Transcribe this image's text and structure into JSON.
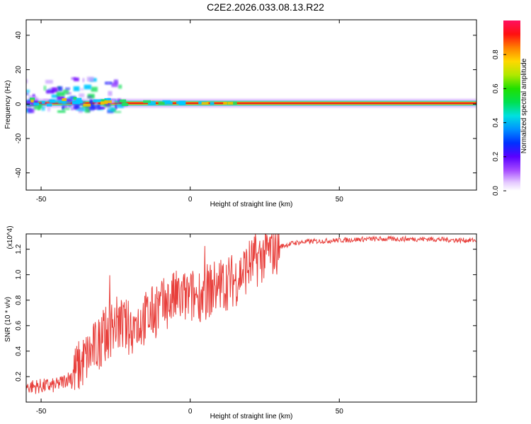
{
  "title": "C2E2.2026.033.08.13.R22",
  "chart_data": [
    {
      "type": "heatmap",
      "name": "spectrogram",
      "xlabel": "Height of straight line (km)",
      "ylabel": "Frequency (Hz)",
      "xlim": [
        -55,
        96
      ],
      "ylim": [
        -50,
        49
      ],
      "xticks": [
        -50,
        0,
        50
      ],
      "yticks": [
        -40,
        -20,
        0,
        20,
        40
      ],
      "features": [
        {
          "desc": "dominant ridge",
          "x_range": [
            -55,
            96
          ],
          "freq": 0.5,
          "amplitude": 1.0
        },
        {
          "desc": "noisy band",
          "x_range": [
            -55,
            -22
          ],
          "freq_range": [
            -5,
            15
          ],
          "amplitude": 0.3
        }
      ],
      "colorbar": {
        "label": "Normalized spectral amplitude",
        "range": [
          0.0,
          1.0
        ],
        "ticks": [
          0.0,
          0.2,
          0.4,
          0.6,
          0.8
        ],
        "tick_labels": [
          "0.0",
          "0.2",
          "0.4",
          "0.6",
          "0.8"
        ]
      }
    },
    {
      "type": "line",
      "name": "snr",
      "xlabel": "Height of straight line (km)",
      "ylabel": "SNR (10 * v/v)",
      "multiplier": "(x10^4)",
      "xlim": [
        -55,
        96
      ],
      "ylim": [
        0.0,
        1.32
      ],
      "xticks": [
        -50,
        0,
        50
      ],
      "yticks": [
        0.2,
        0.4,
        0.6,
        0.8,
        1.0,
        1.2
      ],
      "ytick_labels": [
        "0.2",
        "0.4",
        "0.6",
        "0.8",
        "1.0",
        "1.2"
      ],
      "color": "#e8403c",
      "envelope": [
        {
          "x": -55,
          "y": 0.12
        },
        {
          "x": -45,
          "y": 0.13
        },
        {
          "x": -40,
          "y": 0.2
        },
        {
          "x": -35,
          "y": 0.34
        },
        {
          "x": -30,
          "y": 0.48
        },
        {
          "x": -25,
          "y": 0.62
        },
        {
          "x": -20,
          "y": 0.58
        },
        {
          "x": -15,
          "y": 0.66
        },
        {
          "x": -10,
          "y": 0.74
        },
        {
          "x": -5,
          "y": 0.82
        },
        {
          "x": 0,
          "y": 0.82
        },
        {
          "x": 5,
          "y": 0.86
        },
        {
          "x": 10,
          "y": 0.92
        },
        {
          "x": 15,
          "y": 0.96
        },
        {
          "x": 20,
          "y": 1.08
        },
        {
          "x": 25,
          "y": 1.16
        },
        {
          "x": 30,
          "y": 1.22
        },
        {
          "x": 35,
          "y": 1.25
        },
        {
          "x": 40,
          "y": 1.26
        },
        {
          "x": 50,
          "y": 1.27
        },
        {
          "x": 60,
          "y": 1.28
        },
        {
          "x": 70,
          "y": 1.28
        },
        {
          "x": 80,
          "y": 1.28
        },
        {
          "x": 90,
          "y": 1.27
        },
        {
          "x": 96,
          "y": 1.27
        }
      ]
    }
  ]
}
